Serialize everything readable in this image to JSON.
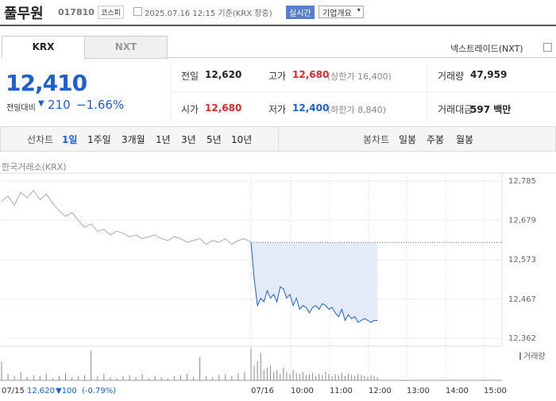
{
  "header": {
    "name": "풀무원",
    "code": "017810",
    "market": "코스피",
    "datetime": "2025.07.16 12:15 기준(KRX 장중)",
    "realtime": "실시간",
    "company": "기업개요"
  },
  "tabs": [
    "KRX",
    "NXT"
  ],
  "nxt_link": "넥스트레이드(NXT)",
  "price": {
    "current": "12,410",
    "change_label": "전일대비",
    "change": "210",
    "change_pct": "−1.66%"
  },
  "stats": [
    {
      "label": "전일",
      "value": "12,620"
    },
    {
      "label": "고가",
      "value": "12,680",
      "extra": "(상한가 16,400)"
    },
    {
      "label": "거래량",
      "value": "47,959"
    },
    {
      "label": "시가",
      "value": "12,680"
    },
    {
      "label": "저가",
      "value": "12,400",
      "extra": "(하한가 8,840)"
    },
    {
      "label": "거래대금",
      "value": "597 백만"
    }
  ],
  "periods": {
    "label": "선차트",
    "items": [
      "1일",
      "1주일",
      "3개월",
      "1년",
      "3년",
      "5년",
      "10년"
    ]
  },
  "candles": {
    "label": "봉차트",
    "items": [
      "일봉",
      "주봉",
      "월봉"
    ]
  },
  "chart_data": {
    "type": "line",
    "source": "한국거래소(KRX)",
    "ylim": [
      12362,
      12785
    ],
    "yticks": [
      {
        "value": 12362,
        "label": "12,362"
      },
      {
        "value": 12467,
        "label": "12,467"
      },
      {
        "value": 12573,
        "label": "12,573"
      },
      {
        "value": 12679,
        "label": "12,679"
      },
      {
        "value": 12785,
        "label": "12,785"
      }
    ],
    "baseline": 12620,
    "series": [
      {
        "color": "#aaaaaa",
        "values": [
          12730,
          12745,
          12720,
          12755,
          12740,
          12760,
          12735,
          12750,
          12725,
          12705,
          12690,
          12700,
          12680,
          12660,
          12670,
          12650,
          12655,
          12640,
          12650,
          12645,
          12635,
          12640,
          12630,
          12635,
          12640,
          12630,
          12625,
          12635,
          12630,
          12620,
          12625,
          12630,
          12615,
          12625,
          12620,
          12630,
          12615,
          12625,
          12630,
          12620
        ]
      },
      {
        "color": "#1e5fd1",
        "fill": "#e3ebf9",
        "values": [
          12620,
          12520,
          12450,
          12470,
          12460,
          12490,
          12470,
          12480,
          12460,
          12500,
          12495,
          12470,
          12480,
          12450,
          12470,
          12440,
          12450,
          12445,
          12430,
          12445,
          12450,
          12440,
          12455,
          12450,
          12440,
          12445,
          12430,
          12420,
          12440,
          12410,
          12425,
          12415,
          12420,
          12405,
          12410,
          12415,
          12410,
          12405,
          12410,
          12410
        ]
      }
    ],
    "volume_label": "거래량",
    "volume": [
      {
        "values": [
          900,
          300,
          200,
          400,
          150,
          250,
          200,
          300,
          100,
          200,
          350,
          150,
          200,
          250,
          1400,
          200,
          300,
          150,
          100,
          200,
          250,
          150,
          300,
          100,
          200,
          150,
          100,
          200,
          250,
          300,
          150,
          1100,
          200,
          150,
          250,
          300,
          200,
          350,
          400,
          600
        ]
      },
      {
        "values": [
          1500,
          700,
          900,
          1300,
          500,
          600,
          700,
          400,
          500,
          300,
          600,
          400,
          300,
          500,
          350,
          300,
          400,
          250,
          300,
          350,
          200,
          300,
          250,
          400,
          300,
          200,
          300,
          250,
          350,
          200,
          300,
          250,
          200,
          300,
          250,
          200,
          150,
          250,
          200,
          150
        ]
      }
    ],
    "time_labels": [
      "07/15",
      "07/16",
      "10:00",
      "11:00",
      "12:00",
      "13:00",
      "14:00",
      "15:00"
    ],
    "prev_close": {
      "price": "12,620",
      "change": "▼100",
      "pct": "(-0.79%)"
    }
  }
}
